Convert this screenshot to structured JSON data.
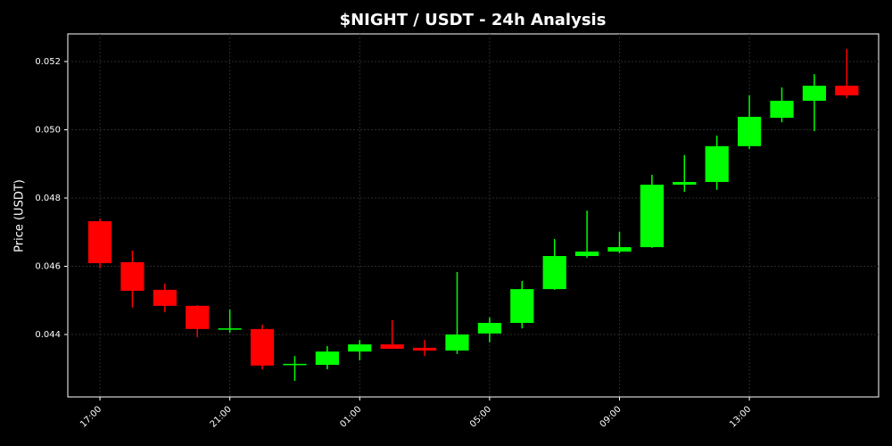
{
  "chart_data": {
    "type": "candlestick",
    "title": "$NIGHT / USDT - 24h Analysis",
    "ylabel": "Price (USDT)",
    "categories": [
      "17:00",
      null,
      null,
      null,
      "21:00",
      null,
      null,
      null,
      "01:00",
      null,
      null,
      null,
      "05:00",
      null,
      null,
      null,
      "09:00",
      null,
      null,
      null,
      "13:00",
      null,
      null,
      null
    ],
    "series": {
      "open": [
        0.04732,
        0.04612,
        0.04531,
        0.04484,
        0.04414,
        0.04416,
        0.04311,
        0.04311,
        0.0435,
        0.04371,
        0.04361,
        0.04353,
        0.04403,
        0.04434,
        0.04533,
        0.0463,
        0.04643,
        0.04656,
        0.04839,
        0.04847,
        0.04952,
        0.05035,
        0.05085,
        0.05129
      ],
      "high": [
        0.0474,
        0.04646,
        0.04549,
        0.04486,
        0.04473,
        0.04429,
        0.04337,
        0.04366,
        0.04384,
        0.04442,
        0.04384,
        0.04583,
        0.0445,
        0.04557,
        0.0468,
        0.04763,
        0.04701,
        0.04868,
        0.04926,
        0.04983,
        0.05101,
        0.05124,
        0.05163,
        0.05237
      ],
      "low": [
        0.04594,
        0.04479,
        0.04465,
        0.04392,
        0.04405,
        0.04298,
        0.04264,
        0.04298,
        0.04324,
        0.04358,
        0.04337,
        0.04343,
        0.04377,
        0.04418,
        0.04531,
        0.04625,
        0.04638,
        0.04654,
        0.04818,
        0.04824,
        0.04944,
        0.05022,
        0.04996,
        0.05093
      ],
      "close": [
        0.04609,
        0.04528,
        0.04484,
        0.04416,
        0.04418,
        0.04309,
        0.04314,
        0.0435,
        0.04371,
        0.04358,
        0.04353,
        0.044,
        0.04434,
        0.04533,
        0.0463,
        0.04643,
        0.04656,
        0.04839,
        0.04847,
        0.04952,
        0.05038,
        0.05085,
        0.05129,
        0.05101
      ]
    },
    "up_color": "#00ff00",
    "down_color": "#ff0000",
    "ylim": [
      0.04217,
      0.05281
    ],
    "yticks": [
      0.044,
      0.046,
      0.048,
      {
        "value": 0.05,
        "label": "0.050"
      },
      0.052
    ],
    "grid": true
  }
}
